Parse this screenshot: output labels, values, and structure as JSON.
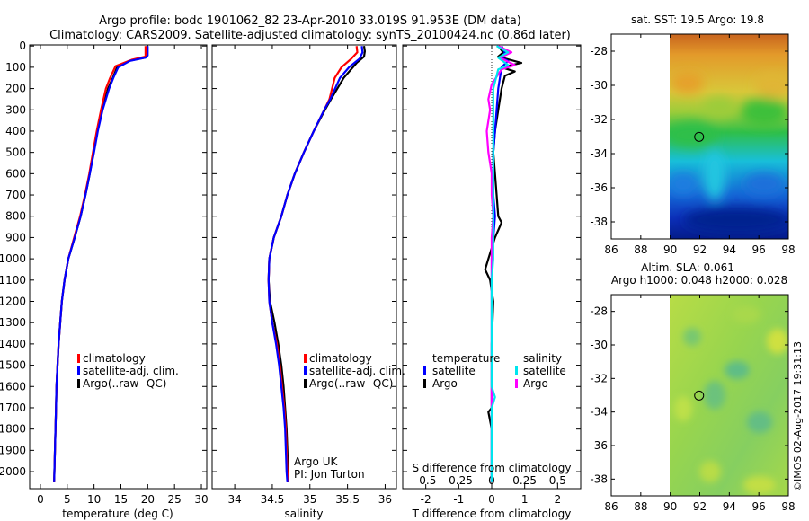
{
  "header": {
    "title_line1": "Argo profile: bodc 1901062_82 23-Apr-2010 33.019S 91.953E (DM data)",
    "title_line2": "Climatology: CARS2009. Satellite-adjusted climatology: synTS_20100424.nc (0.86d later)"
  },
  "side_label": "©IMOS 02-Aug-2017 19:31:13",
  "colors": {
    "climatology": "#ff0000",
    "satellite": "#0000ff",
    "argo": "#000000",
    "sal_satellite": "#00e5ee",
    "sal_argo": "#ff00ff"
  },
  "chart_data": [
    {
      "id": "temperature",
      "type": "line",
      "xlabel": "temperature (deg C)",
      "ylabel": "depth",
      "xlim": [
        -2,
        31
      ],
      "ylim": [
        2080,
        -5
      ],
      "xticks": [
        0,
        5,
        10,
        15,
        20,
        25,
        30
      ],
      "yticks": [
        0,
        100,
        200,
        300,
        400,
        500,
        600,
        700,
        800,
        900,
        1000,
        1100,
        1200,
        1300,
        1400,
        1500,
        1600,
        1700,
        1800,
        1900,
        2000
      ],
      "legend": [
        "climatology",
        "satellite-adj. clim.",
        "Argo(..raw -QC)"
      ],
      "series": [
        {
          "name": "Argo(..raw -QC)",
          "color": "#000000",
          "points": [
            [
              19.9,
              0
            ],
            [
              19.9,
              40
            ],
            [
              19.5,
              55
            ],
            [
              16.5,
              70
            ],
            [
              14.3,
              100
            ],
            [
              13.5,
              150
            ],
            [
              12.6,
              200
            ],
            [
              11.5,
              300
            ],
            [
              10.6,
              400
            ],
            [
              9.9,
              500
            ],
            [
              9.2,
              600
            ],
            [
              8.4,
              700
            ],
            [
              7.5,
              800
            ],
            [
              6.4,
              900
            ],
            [
              5.2,
              1000
            ],
            [
              4.5,
              1100
            ],
            [
              4.0,
              1200
            ],
            [
              3.7,
              1300
            ],
            [
              3.4,
              1400
            ],
            [
              3.2,
              1500
            ],
            [
              3.0,
              1600
            ],
            [
              2.9,
              1700
            ],
            [
              2.8,
              1800
            ],
            [
              2.7,
              1900
            ],
            [
              2.6,
              2000
            ],
            [
              2.55,
              2050
            ]
          ]
        },
        {
          "name": "climatology",
          "color": "#ff0000",
          "points": [
            [
              19.6,
              0
            ],
            [
              19.6,
              50
            ],
            [
              17.0,
              65
            ],
            [
              14.0,
              95
            ],
            [
              13.0,
              150
            ],
            [
              12.2,
              200
            ],
            [
              11.3,
              300
            ],
            [
              10.5,
              400
            ],
            [
              9.8,
              500
            ],
            [
              9.1,
              600
            ],
            [
              8.3,
              700
            ],
            [
              7.4,
              800
            ],
            [
              6.3,
              900
            ],
            [
              5.2,
              1000
            ],
            [
              4.5,
              1100
            ],
            [
              4.0,
              1200
            ],
            [
              3.7,
              1300
            ],
            [
              3.4,
              1400
            ],
            [
              3.2,
              1500
            ],
            [
              3.0,
              1600
            ],
            [
              2.9,
              1700
            ],
            [
              2.8,
              1800
            ],
            [
              2.7,
              1900
            ],
            [
              2.6,
              2000
            ],
            [
              2.55,
              2050
            ]
          ]
        },
        {
          "name": "satellite-adj. clim.",
          "color": "#0000ff",
          "points": [
            [
              20.0,
              0
            ],
            [
              20.0,
              45
            ],
            [
              19.6,
              55
            ],
            [
              16.7,
              70
            ],
            [
              14.5,
              100
            ],
            [
              13.6,
              150
            ],
            [
              12.8,
              200
            ],
            [
              11.6,
              300
            ],
            [
              10.7,
              400
            ],
            [
              10.0,
              500
            ],
            [
              9.2,
              600
            ],
            [
              8.4,
              700
            ],
            [
              7.5,
              800
            ],
            [
              6.4,
              900
            ],
            [
              5.2,
              1000
            ],
            [
              4.5,
              1100
            ],
            [
              4.0,
              1200
            ],
            [
              3.7,
              1300
            ],
            [
              3.4,
              1400
            ],
            [
              3.2,
              1500
            ],
            [
              3.0,
              1600
            ],
            [
              2.9,
              1700
            ],
            [
              2.8,
              1800
            ],
            [
              2.7,
              1900
            ],
            [
              2.6,
              2000
            ],
            [
              2.55,
              2050
            ]
          ]
        }
      ]
    },
    {
      "id": "salinity",
      "type": "line",
      "xlabel": "salinity",
      "xlim": [
        33.7,
        36.15
      ],
      "ylim": [
        2080,
        -5
      ],
      "xticks": [
        34,
        34.5,
        35,
        35.5,
        36
      ],
      "legend": [
        "climatology",
        "satellite-adj. clim.",
        "Argo(..raw -QC)"
      ],
      "annotation": [
        "Argo UK",
        "PI: Jon Turton"
      ],
      "series": [
        {
          "name": "Argo(..raw -QC)",
          "color": "#000000",
          "points": [
            [
              35.72,
              0
            ],
            [
              35.73,
              25
            ],
            [
              35.72,
              50
            ],
            [
              35.62,
              80
            ],
            [
              35.45,
              150
            ],
            [
              35.28,
              250
            ],
            [
              35.2,
              300
            ],
            [
              35.05,
              400
            ],
            [
              34.92,
              500
            ],
            [
              34.8,
              600
            ],
            [
              34.7,
              700
            ],
            [
              34.62,
              800
            ],
            [
              34.52,
              900
            ],
            [
              34.46,
              1000
            ],
            [
              34.45,
              1100
            ],
            [
              34.47,
              1200
            ],
            [
              34.53,
              1300
            ],
            [
              34.58,
              1400
            ],
            [
              34.62,
              1500
            ],
            [
              34.65,
              1600
            ],
            [
              34.67,
              1700
            ],
            [
              34.69,
              1800
            ],
            [
              34.7,
              1900
            ],
            [
              34.71,
              2000
            ],
            [
              34.71,
              2050
            ]
          ]
        },
        {
          "name": "climatology",
          "color": "#ff0000",
          "points": [
            [
              35.62,
              0
            ],
            [
              35.63,
              30
            ],
            [
              35.55,
              60
            ],
            [
              35.42,
              100
            ],
            [
              35.33,
              150
            ],
            [
              35.26,
              250
            ],
            [
              35.19,
              300
            ],
            [
              35.05,
              400
            ],
            [
              34.92,
              500
            ],
            [
              34.8,
              600
            ],
            [
              34.7,
              700
            ],
            [
              34.62,
              800
            ],
            [
              34.52,
              900
            ],
            [
              34.46,
              1000
            ],
            [
              34.45,
              1100
            ],
            [
              34.46,
              1200
            ],
            [
              34.5,
              1300
            ],
            [
              34.56,
              1400
            ],
            [
              34.6,
              1500
            ],
            [
              34.63,
              1600
            ],
            [
              34.66,
              1700
            ],
            [
              34.68,
              1800
            ],
            [
              34.69,
              1900
            ],
            [
              34.7,
              2000
            ],
            [
              34.71,
              2050
            ]
          ]
        },
        {
          "name": "satellite-adj. clim.",
          "color": "#0000ff",
          "points": [
            [
              35.69,
              0
            ],
            [
              35.7,
              30
            ],
            [
              35.66,
              60
            ],
            [
              35.52,
              100
            ],
            [
              35.4,
              150
            ],
            [
              35.27,
              250
            ],
            [
              35.19,
              300
            ],
            [
              35.05,
              400
            ],
            [
              34.92,
              500
            ],
            [
              34.8,
              600
            ],
            [
              34.7,
              700
            ],
            [
              34.62,
              800
            ],
            [
              34.52,
              900
            ],
            [
              34.46,
              1000
            ],
            [
              34.45,
              1100
            ],
            [
              34.46,
              1200
            ],
            [
              34.5,
              1300
            ],
            [
              34.55,
              1400
            ],
            [
              34.59,
              1500
            ],
            [
              34.62,
              1600
            ],
            [
              34.65,
              1700
            ],
            [
              34.67,
              1800
            ],
            [
              34.68,
              1900
            ],
            [
              34.69,
              2000
            ],
            [
              34.7,
              2050
            ]
          ]
        }
      ]
    },
    {
      "id": "difference",
      "type": "line",
      "xlabel": "T difference from climatology",
      "x2label": "S difference from climatology",
      "xlim": [
        -2.7,
        2.7
      ],
      "ylim": [
        2080,
        -5
      ],
      "xticks": [
        -2,
        -1,
        0,
        1,
        2
      ],
      "x2ticks": [
        -0.5,
        -0.25,
        0,
        0.25,
        0.5
      ],
      "legend_titles": [
        "temperature",
        "salinity"
      ],
      "legend": [
        "satellite",
        "Argo",
        "satellite",
        "Argo"
      ],
      "series": [
        {
          "name": "temperature Argo",
          "color": "#000000",
          "points": [
            [
              0.2,
              0
            ],
            [
              0.35,
              30
            ],
            [
              0.2,
              50
            ],
            [
              0.9,
              80
            ],
            [
              0.3,
              100
            ],
            [
              0.7,
              120
            ],
            [
              0.4,
              140
            ],
            [
              0.3,
              200
            ],
            [
              0.2,
              300
            ],
            [
              0.1,
              400
            ],
            [
              0.05,
              500
            ],
            [
              0.1,
              600
            ],
            [
              0.15,
              700
            ],
            [
              0.2,
              800
            ],
            [
              0.3,
              830
            ],
            [
              0.1,
              900
            ],
            [
              -0.1,
              1000
            ],
            [
              -0.2,
              1050
            ],
            [
              -0.05,
              1100
            ],
            [
              0.05,
              1200
            ],
            [
              0,
              1400
            ],
            [
              0,
              1700
            ],
            [
              -0.1,
              1720
            ],
            [
              0,
              1800
            ],
            [
              0,
              2050
            ]
          ]
        },
        {
          "name": "temperature satellite",
          "color": "#0000ff",
          "points": [
            [
              0.3,
              0
            ],
            [
              0.4,
              30
            ],
            [
              0.3,
              55
            ],
            [
              0.5,
              70
            ],
            [
              0.3,
              100
            ],
            [
              0.2,
              200
            ],
            [
              0.15,
              300
            ],
            [
              0.1,
              400
            ],
            [
              0.05,
              500
            ],
            [
              0.05,
              700
            ],
            [
              0.1,
              800
            ],
            [
              0,
              1000
            ],
            [
              0,
              2050
            ]
          ]
        },
        {
          "name": "salinity Argo",
          "color": "#ff00ff",
          "points": [
            [
              0.2,
              0
            ],
            [
              0.6,
              30
            ],
            [
              0.25,
              55
            ],
            [
              0.7,
              90
            ],
            [
              0.3,
              110
            ],
            [
              0,
              180
            ],
            [
              -0.1,
              250
            ],
            [
              -0.05,
              300
            ],
            [
              -0.15,
              400
            ],
            [
              -0.1,
              500
            ],
            [
              0,
              600
            ],
            [
              0,
              700
            ],
            [
              0.05,
              800
            ],
            [
              0,
              900
            ],
            [
              0,
              2050
            ]
          ]
        },
        {
          "name": "salinity satellite",
          "color": "#00e5ee",
          "points": [
            [
              0.15,
              0
            ],
            [
              0.5,
              30
            ],
            [
              0.2,
              55
            ],
            [
              0.5,
              90
            ],
            [
              0.2,
              110
            ],
            [
              0.05,
              200
            ],
            [
              0.05,
              300
            ],
            [
              0.05,
              400
            ],
            [
              0.05,
              500
            ],
            [
              0.05,
              600
            ],
            [
              0.05,
              800
            ],
            [
              0.05,
              1000
            ],
            [
              0,
              1100
            ],
            [
              0,
              1600
            ],
            [
              0.1,
              1650
            ],
            [
              0,
              1700
            ],
            [
              0,
              2050
            ]
          ]
        }
      ]
    },
    {
      "id": "sst_map",
      "type": "heatmap",
      "title": "sat. SST: 19.5 Argo: 19.8",
      "xlim": [
        86,
        98
      ],
      "ylim": [
        -39,
        -27
      ],
      "xticks": [
        86,
        88,
        90,
        92,
        94,
        96,
        98
      ],
      "yticks": [
        -28,
        -30,
        -32,
        -34,
        -36,
        -38
      ],
      "data_x_start": 90,
      "profile_location": [
        91.953,
        -33.019
      ]
    },
    {
      "id": "sla_map",
      "type": "heatmap",
      "title_line1": "Altim. SLA: 0.061",
      "title_line2": "Argo h1000: 0.048 h2000: 0.028",
      "xlim": [
        86,
        98
      ],
      "ylim": [
        -39,
        -27
      ],
      "xticks": [
        86,
        88,
        90,
        92,
        94,
        96,
        98
      ],
      "yticks": [
        -28,
        -30,
        -32,
        -34,
        -36,
        -38
      ],
      "data_x_start": 90,
      "profile_location": [
        91.953,
        -33.019
      ]
    }
  ]
}
